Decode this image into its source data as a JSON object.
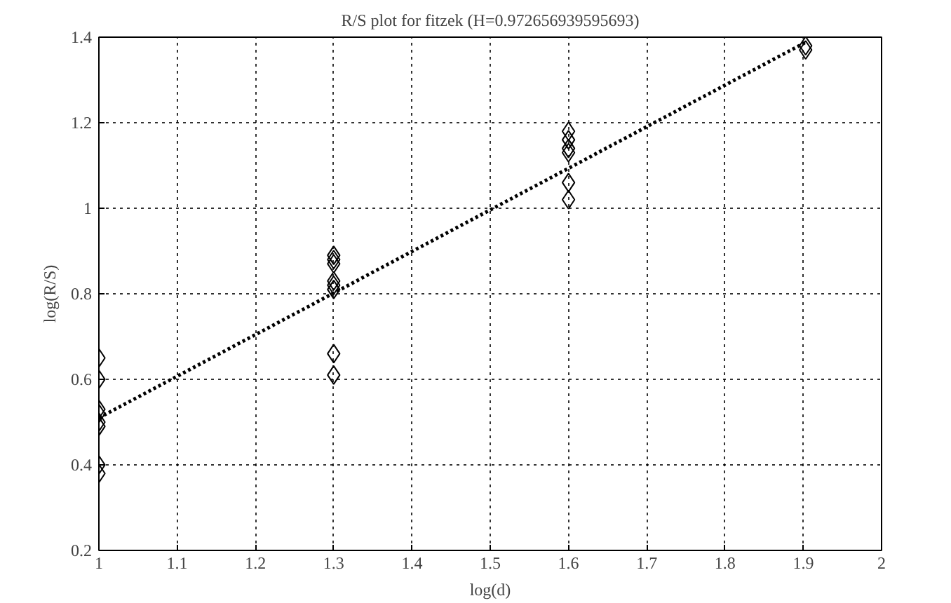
{
  "chart_data": {
    "type": "scatter",
    "title": "R/S plot for fitzek (H=0.972656939595693)",
    "xlabel": "log(d)",
    "ylabel": "log(R/S)",
    "xlim": [
      1,
      2
    ],
    "ylim": [
      0.2,
      1.4
    ],
    "xticks": [
      1,
      1.1,
      1.2,
      1.3,
      1.4,
      1.5,
      1.6,
      1.7,
      1.8,
      1.9,
      2
    ],
    "yticks": [
      0.2,
      0.4,
      0.6,
      0.8,
      1,
      1.2,
      1.4
    ],
    "grid": true,
    "marker": "diamond",
    "series": [
      {
        "color": "#000000",
        "x": [
          1,
          1,
          1,
          1,
          1,
          1,
          1,
          1,
          1.3,
          1.3,
          1.3,
          1.3,
          1.3,
          1.3,
          1.3,
          1.3,
          1.6,
          1.6,
          1.6,
          1.6,
          1.6,
          1.6,
          1.903,
          1.903
        ],
        "values": [
          0.65,
          0.6,
          0.53,
          0.52,
          0.5,
          0.49,
          0.4,
          0.38,
          0.89,
          0.88,
          0.87,
          0.83,
          0.82,
          0.81,
          0.66,
          0.61,
          1.18,
          1.16,
          1.14,
          1.13,
          1.06,
          1.02,
          1.38,
          1.37
        ]
      },
      {
        "type": "line",
        "color": "#000000",
        "line_style": "dotted",
        "marker": "none",
        "x": [
          1,
          1.903
        ],
        "values": [
          0.51,
          1.388
        ]
      }
    ]
  }
}
